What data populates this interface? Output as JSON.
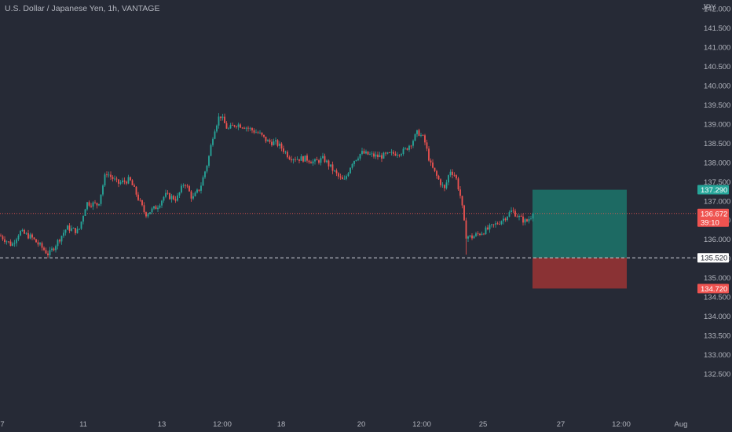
{
  "title": "U.S. Dollar / Japanese Yen, 1h, VANTAGE",
  "currency_label": "JPY",
  "colors": {
    "background": "#262a36",
    "up": "#26a69a",
    "down": "#ef5350",
    "target_zone": "#1d6a63",
    "stop_zone": "#8a3234",
    "text": "#b2b5be"
  },
  "chart_data": {
    "type": "candlestick",
    "ylim": [
      132.25,
      142.6
    ],
    "y_ticks": [
      132.5,
      133.0,
      133.5,
      134.0,
      134.5,
      135.0,
      135.5,
      136.0,
      136.5,
      137.0,
      137.5,
      138.0,
      138.5,
      139.0,
      139.5,
      140.0,
      140.5,
      141.0,
      141.5,
      142.0
    ],
    "y_tick_labels": [
      "132.500",
      "133.000",
      "133.500",
      "134.000",
      "134.500",
      "135.000",
      "135.500",
      "136.000",
      "136.500",
      "137.000",
      "137.500",
      "138.000",
      "138.500",
      "139.000",
      "139.500",
      "140.000",
      "140.500",
      "141.000",
      "141.500",
      "142.000"
    ],
    "x_tick_labels": [
      "7",
      "11",
      "13",
      "12:00",
      "18",
      "20",
      "12:00",
      "25",
      "27",
      "12:00",
      "Aug"
    ],
    "price_path": [
      [
        0,
        136.1
      ],
      [
        15,
        135.85
      ],
      [
        25,
        136.2
      ],
      [
        40,
        136.05
      ],
      [
        55,
        135.75
      ],
      [
        62,
        135.6
      ],
      [
        72,
        135.9
      ],
      [
        85,
        136.3
      ],
      [
        100,
        136.2
      ],
      [
        110,
        136.95
      ],
      [
        125,
        136.9
      ],
      [
        135,
        137.75
      ],
      [
        150,
        137.45
      ],
      [
        165,
        137.55
      ],
      [
        172,
        137.25
      ],
      [
        185,
        136.65
      ],
      [
        200,
        136.85
      ],
      [
        210,
        137.15
      ],
      [
        225,
        137.05
      ],
      [
        235,
        137.5
      ],
      [
        245,
        137.05
      ],
      [
        255,
        137.35
      ],
      [
        265,
        138.05
      ],
      [
        272,
        138.8
      ],
      [
        280,
        139.25
      ],
      [
        290,
        138.85
      ],
      [
        300,
        139.0
      ],
      [
        310,
        138.95
      ],
      [
        320,
        138.85
      ],
      [
        330,
        138.75
      ],
      [
        340,
        138.55
      ],
      [
        352,
        138.5
      ],
      [
        360,
        138.35
      ],
      [
        368,
        138.15
      ],
      [
        378,
        138.1
      ],
      [
        390,
        138.1
      ],
      [
        400,
        138.0
      ],
      [
        412,
        138.1
      ],
      [
        422,
        137.85
      ],
      [
        432,
        137.6
      ],
      [
        438,
        137.5
      ],
      [
        448,
        138.0
      ],
      [
        460,
        138.25
      ],
      [
        470,
        138.2
      ],
      [
        482,
        138.15
      ],
      [
        495,
        138.2
      ],
      [
        505,
        138.25
      ],
      [
        515,
        138.3
      ],
      [
        525,
        138.55
      ],
      [
        532,
        138.8
      ],
      [
        540,
        138.6
      ],
      [
        548,
        137.95
      ],
      [
        557,
        137.6
      ],
      [
        566,
        137.3
      ],
      [
        573,
        137.8
      ],
      [
        580,
        137.65
      ],
      [
        587,
        137.05
      ],
      [
        593,
        136.1
      ],
      [
        600,
        136.05
      ],
      [
        610,
        136.15
      ],
      [
        620,
        136.25
      ],
      [
        632,
        136.4
      ],
      [
        642,
        136.55
      ],
      [
        652,
        136.75
      ],
      [
        662,
        136.55
      ],
      [
        670,
        136.45
      ],
      [
        680,
        136.7
      ]
    ],
    "current_price": 136.672,
    "current_price_label": "136.672",
    "countdown": "39:10",
    "entry_price": 135.52,
    "entry_label": "135.520",
    "take_profit": 137.29,
    "take_profit_label": "137.290",
    "stop_loss": 134.72,
    "stop_loss_label": "134.720",
    "legend": "none",
    "grid": false
  }
}
